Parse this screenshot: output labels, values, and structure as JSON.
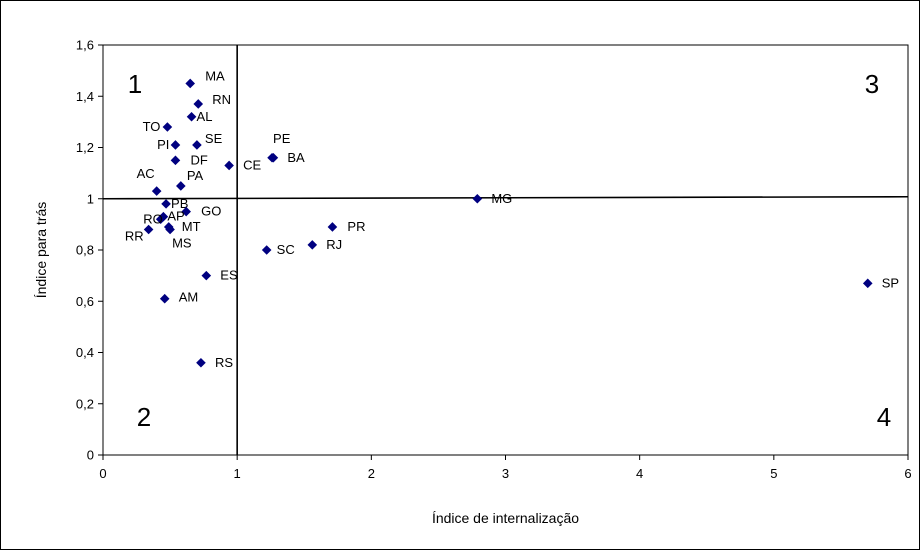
{
  "chart_data": {
    "type": "scatter",
    "xlabel": "Índice de internalização",
    "ylabel": "Índice para trás",
    "xlim": [
      0,
      6
    ],
    "ylim": [
      0,
      1.6
    ],
    "x_ticks": [
      "0",
      "1",
      "2",
      "3",
      "4",
      "5",
      "6"
    ],
    "y_ticks": [
      "0",
      "0,2",
      "0,4",
      "0,6",
      "0,8",
      "1",
      "1,2",
      "1,4",
      "1,6"
    ],
    "grid": false,
    "marker_color": "#000080",
    "reference_lines": {
      "x": 1,
      "y": 1
    },
    "quadrants": [
      "1",
      "2",
      "3",
      "4"
    ],
    "points": [
      {
        "label": "MA",
        "x": 0.65,
        "y": 1.45
      },
      {
        "label": "RN",
        "x": 0.71,
        "y": 1.37
      },
      {
        "label": "AL",
        "x": 0.66,
        "y": 1.32
      },
      {
        "label": "TO",
        "x": 0.48,
        "y": 1.28
      },
      {
        "label": "PI",
        "x": 0.54,
        "y": 1.21
      },
      {
        "label": "SE",
        "x": 0.7,
        "y": 1.21
      },
      {
        "label": "PE",
        "x": 1.26,
        "y": 1.16
      },
      {
        "label": "BA",
        "x": 1.27,
        "y": 1.16
      },
      {
        "label": "DF",
        "x": 0.54,
        "y": 1.15
      },
      {
        "label": "CE",
        "x": 0.94,
        "y": 1.13
      },
      {
        "label": "PA",
        "x": 0.58,
        "y": 1.05
      },
      {
        "label": "AC",
        "x": 0.4,
        "y": 1.03
      },
      {
        "label": "MG",
        "x": 2.79,
        "y": 1.0
      },
      {
        "label": "PB",
        "x": 0.47,
        "y": 0.98
      },
      {
        "label": "GO",
        "x": 0.62,
        "y": 0.95
      },
      {
        "label": "AP",
        "x": 0.45,
        "y": 0.93
      },
      {
        "label": "RO",
        "x": 0.43,
        "y": 0.92
      },
      {
        "label": "PR",
        "x": 1.71,
        "y": 0.89
      },
      {
        "label": "MT",
        "x": 0.49,
        "y": 0.89
      },
      {
        "label": "MS",
        "x": 0.5,
        "y": 0.88
      },
      {
        "label": "RR",
        "x": 0.34,
        "y": 0.88
      },
      {
        "label": "RJ",
        "x": 1.56,
        "y": 0.82
      },
      {
        "label": "SC",
        "x": 1.22,
        "y": 0.8
      },
      {
        "label": "ES",
        "x": 0.77,
        "y": 0.7
      },
      {
        "label": "SP",
        "x": 5.7,
        "y": 0.67
      },
      {
        "label": "AM",
        "x": 0.46,
        "y": 0.61
      },
      {
        "label": "RS",
        "x": 0.73,
        "y": 0.36
      }
    ]
  }
}
